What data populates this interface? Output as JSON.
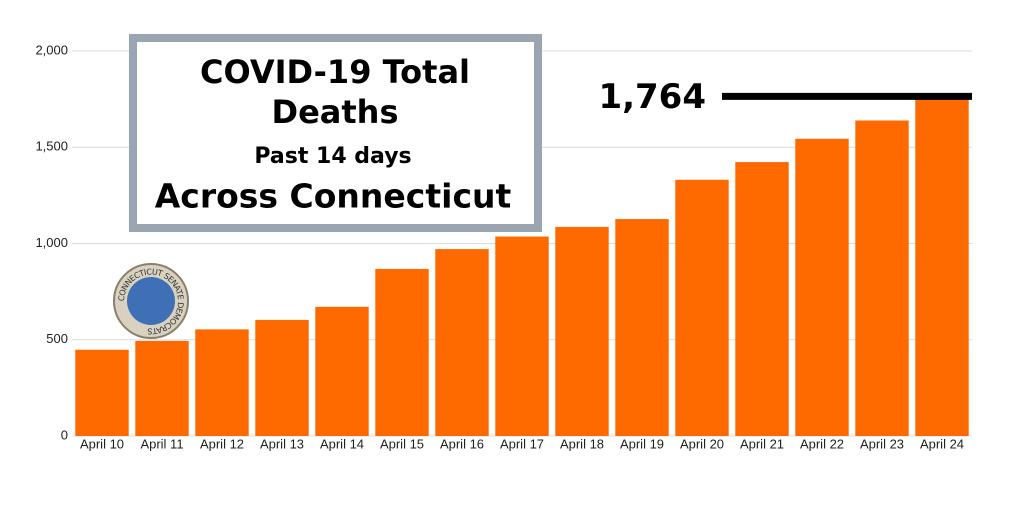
{
  "chart_data": {
    "type": "bar",
    "title": "COVID-19 Total Deaths",
    "subtitle": [
      "Past 14 days",
      "Across Connecticut"
    ],
    "logo_text": "CONNECTICUT SENATE DEMOCRATS",
    "categories": [
      "April 10",
      "April 11",
      "April 12",
      "April 13",
      "April 14",
      "April 15",
      "April 16",
      "April 17",
      "April 18",
      "April 19",
      "April 20",
      "April 21",
      "April 22",
      "April 23",
      "April 24"
    ],
    "values": [
      448,
      494,
      554,
      603,
      671,
      868,
      971,
      1036,
      1086,
      1127,
      1331,
      1423,
      1544,
      1639,
      1764
    ],
    "value_labels": [
      null,
      null,
      null,
      null,
      null,
      null,
      null,
      null,
      null,
      null,
      null,
      null,
      null,
      null,
      "1,764"
    ],
    "color": "#ff6a00",
    "ylim": [
      0,
      2000
    ],
    "yticks": [
      0,
      500,
      {
        "value": 1000,
        "label": "1,000"
      },
      {
        "value": 1500,
        "label": "1,500"
      },
      {
        "value": 2000,
        "label": "2,000"
      }
    ],
    "grid": true
  }
}
